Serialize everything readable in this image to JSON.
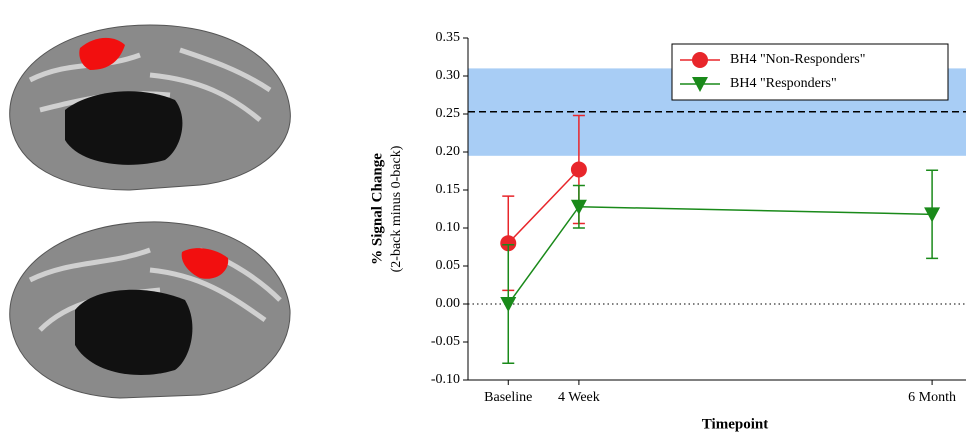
{
  "chart_data": {
    "type": "line",
    "ylabel": "% Signal Change",
    "ylabel_sub": "(2-back minus 0-back)",
    "xlabel": "Timepoint",
    "xlim": [
      -0.57,
      6.48
    ],
    "xticks": [
      {
        "value": 0,
        "label": "Baseline"
      },
      {
        "value": 1,
        "label": "4 Week"
      },
      {
        "value": 6,
        "label": "6 Month"
      }
    ],
    "ylim": [
      -0.1,
      0.35
    ],
    "yticks": [
      {
        "value": -0.1,
        "label": "-0.10"
      },
      {
        "value": -0.05,
        "label": "-0.05"
      },
      {
        "value": 0,
        "label": "0.00"
      },
      {
        "value": 0.05,
        "label": "0.05"
      },
      {
        "value": 0.1,
        "label": "0.10"
      },
      {
        "value": 0.15,
        "label": "0.15"
      },
      {
        "value": 0.2,
        "label": "0.20"
      },
      {
        "value": 0.25,
        "label": "0.25"
      },
      {
        "value": 0.3,
        "label": "0.30"
      },
      {
        "value": 0.35,
        "label": "0.35"
      }
    ],
    "reference_band": [
      0.195,
      0.31
    ],
    "band_color": "#a8cdf5",
    "reference_line": 0.253,
    "legend": "upper right",
    "series": [
      {
        "name": "BH4 \"Non-Responders\"",
        "color": "#e8262b",
        "marker": "circle",
        "x": [
          0,
          1
        ],
        "values": [
          0.08,
          0.177
        ],
        "errors": [
          0.062,
          0.071
        ]
      },
      {
        "name": "BH4 \"Responders\"",
        "color": "#1a8a1a",
        "marker": "triangle-down",
        "x": [
          0,
          1,
          6
        ],
        "values": [
          0.0,
          0.128,
          0.118
        ],
        "errors": [
          0.078,
          0.028,
          0.058
        ]
      }
    ]
  }
}
